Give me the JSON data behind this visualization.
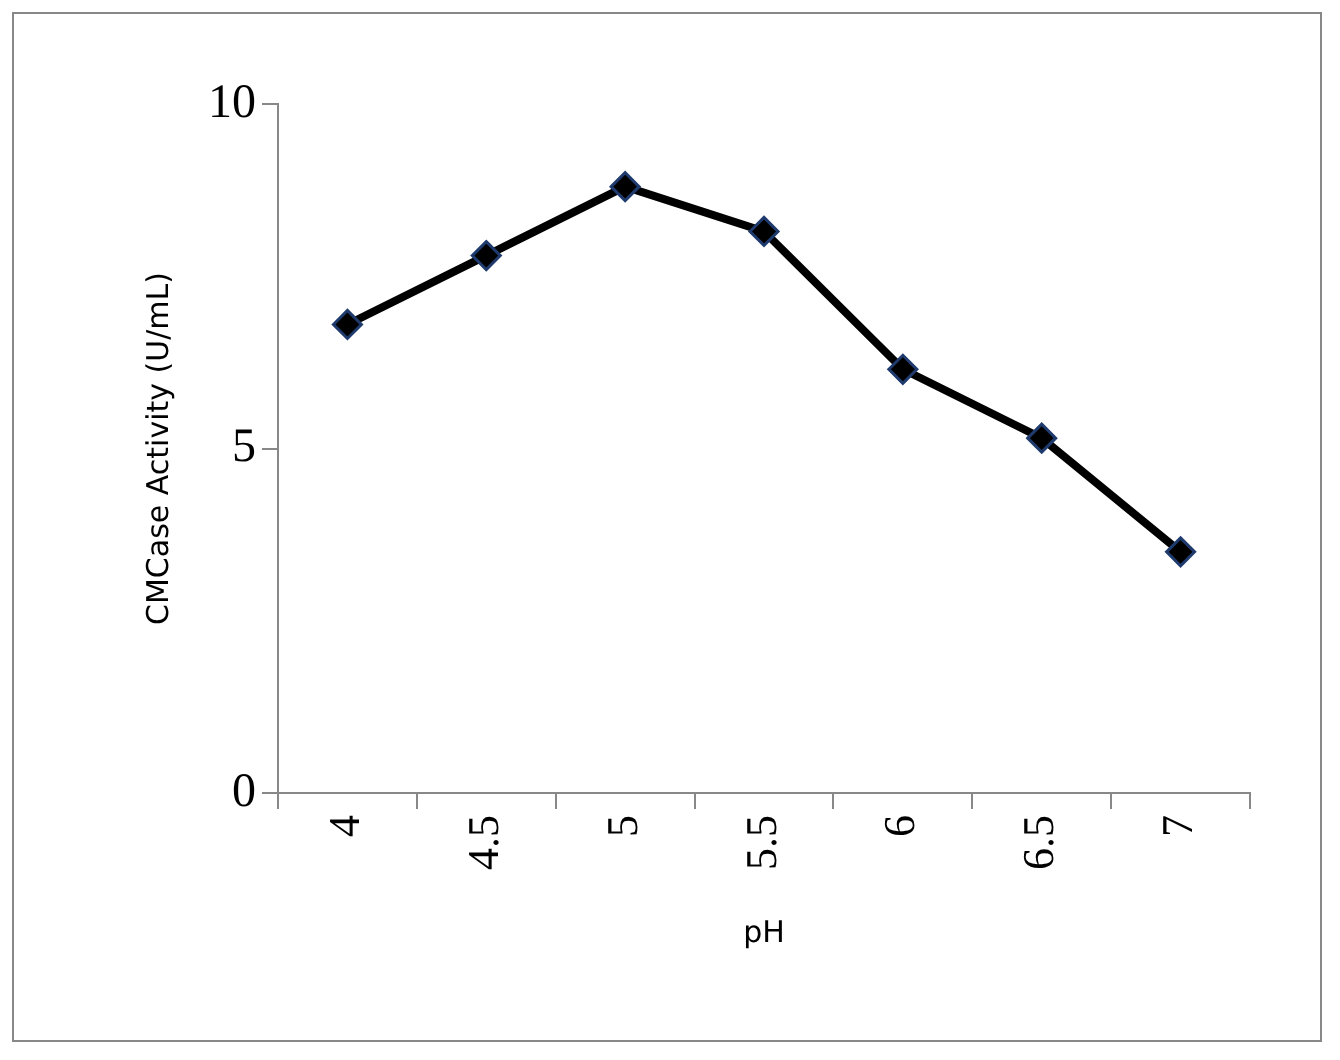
{
  "chart_data": {
    "type": "line",
    "xlabel": "pH",
    "ylabel": "CMCase Activity (U/mL)",
    "categories": [
      "4",
      "4.5",
      "5",
      "5.5",
      "6",
      "6.5",
      "7"
    ],
    "series": [
      {
        "color": "#000000",
        "values": [
          6.8,
          7.8,
          8.8,
          8.15,
          6.15,
          5.15,
          3.5
        ]
      }
    ],
    "ylim": [
      0,
      10
    ],
    "yticks": [
      0,
      5,
      10
    ],
    "grid": false,
    "legend": false,
    "marker": "diamond",
    "line_style": "solid"
  }
}
